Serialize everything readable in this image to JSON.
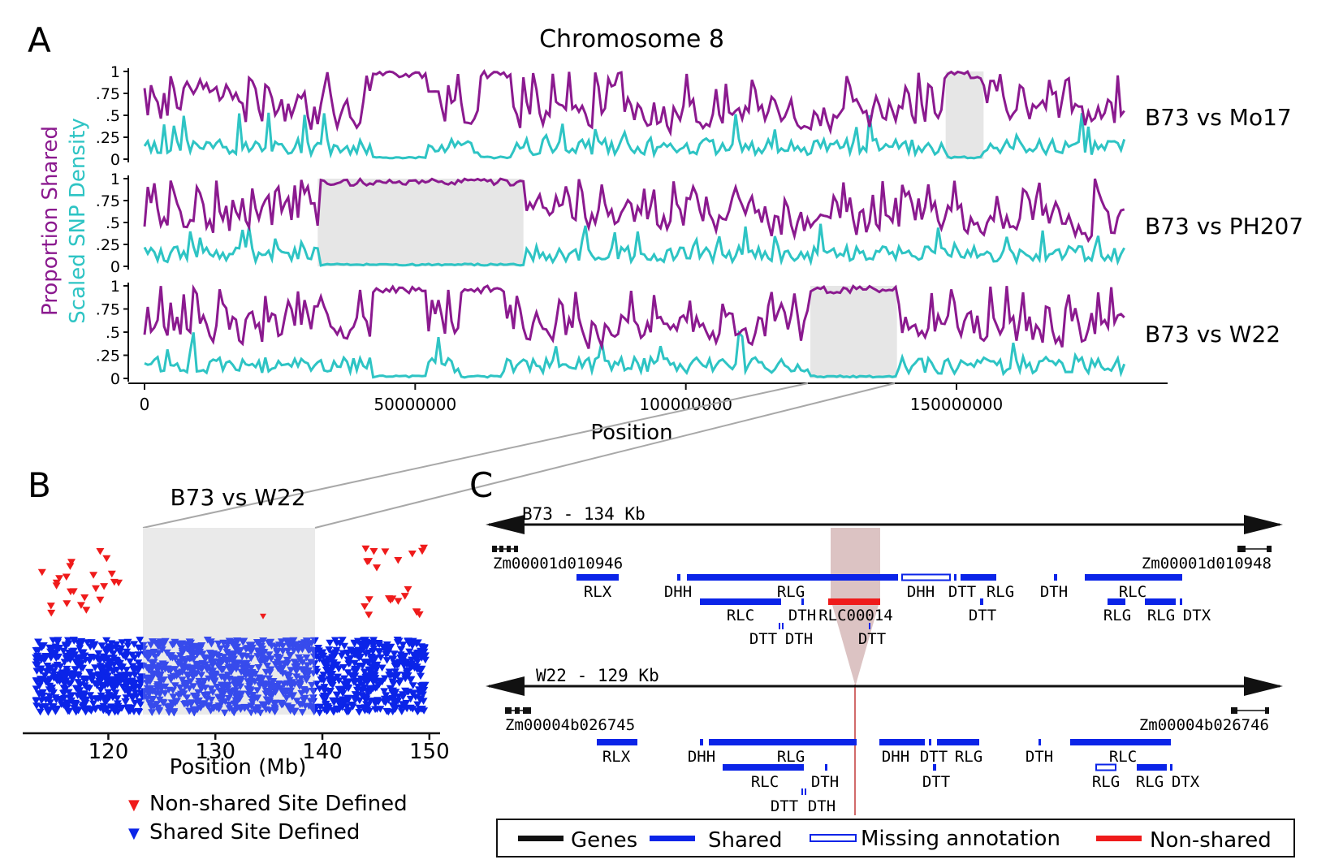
{
  "panel_letters": {
    "a": "A",
    "b": "B",
    "c": "C"
  },
  "colors": {
    "purple": "#8b1a8f",
    "teal": "#2ec4c4",
    "grey_box": "#e6e6e6",
    "blue": "#0b24e8",
    "red": "#ef1b1b",
    "black": "#111111",
    "pink_band": "#dcc3c3"
  },
  "chart_data": [
    {
      "type": "line",
      "title": "Chromosome 8",
      "xlabel": "Position",
      "ylabel": "Proportion Shared",
      "ylabel2": "Scaled SNP Density",
      "x_ticks": [
        "0",
        "50000000",
        "100000000",
        "150000000"
      ],
      "x_tick_values": [
        0,
        50000000,
        100000000,
        150000000
      ],
      "xlim": [
        0,
        180000000
      ],
      "y_ticks": [
        "0",
        ".25",
        ".5",
        ".75",
        "1"
      ],
      "ylim": [
        0,
        1
      ],
      "series_colors": {
        "proportion_shared": "#8b1a8f",
        "snp_density": "#2ec4c4"
      },
      "facets": [
        {
          "name": "B73 vs Mo17",
          "shaded_region": [
            148000000,
            155000000
          ]
        },
        {
          "name": "B73 vs PH207",
          "shaded_region": [
            32000000,
            70000000
          ]
        },
        {
          "name": "B73 vs W22",
          "shaded_region": [
            123000000,
            139000000
          ]
        }
      ]
    },
    {
      "type": "scatter",
      "title": "B73 vs W22",
      "xlabel": "Position (Mb)",
      "x_ticks": [
        "120",
        "130",
        "140",
        "150"
      ],
      "x_tick_values": [
        120,
        130,
        140,
        150
      ],
      "xlim": [
        112,
        151
      ],
      "shaded_region": [
        123.5,
        139.7
      ],
      "legend": [
        {
          "label": "Non-shared Site Defined",
          "marker": "▼",
          "color": "#ef1b1b"
        },
        {
          "label": "Shared Site Defined",
          "marker": "▼",
          "color": "#0b24e8"
        }
      ]
    },
    {
      "type": "diagram",
      "tracks": [
        {
          "name": "B73 - 134 Kb",
          "gene_left": "Zm00001d010946",
          "gene_right": "Zm00001d010948",
          "row1_labels": [
            "RLX",
            "DHH",
            "RLG",
            "DHH",
            "DTT",
            "RLG",
            "DTH",
            "RLC"
          ],
          "row2_labels": [
            "RLC",
            "DTH",
            "RLC00014",
            "DTT",
            "RLG",
            "RLG",
            "DTX"
          ],
          "row3_labels": [
            "DTT",
            "DTH",
            "DTT"
          ]
        },
        {
          "name": "W22 - 129 Kb",
          "gene_left": "Zm00004b026745",
          "gene_right": "Zm00004b026746",
          "row1_labels": [
            "RLX",
            "DHH",
            "RLG",
            "DHH",
            "DTT",
            "RLG",
            "DTH",
            "RLC"
          ],
          "row2_labels": [
            "RLC",
            "DTH",
            "DTT",
            "RLG",
            "RLG",
            "DTX"
          ],
          "row3_labels": [
            "DTT",
            "DTH"
          ]
        }
      ],
      "legend": [
        {
          "label": "Genes",
          "style": "solid",
          "color": "#111111"
        },
        {
          "label": "Shared",
          "style": "solid",
          "color": "#0b24e8"
        },
        {
          "label": "Missing annotation",
          "style": "outline",
          "color": "#0b24e8"
        },
        {
          "label": "Non-shared",
          "style": "solid",
          "color": "#ef1b1b"
        }
      ]
    }
  ]
}
